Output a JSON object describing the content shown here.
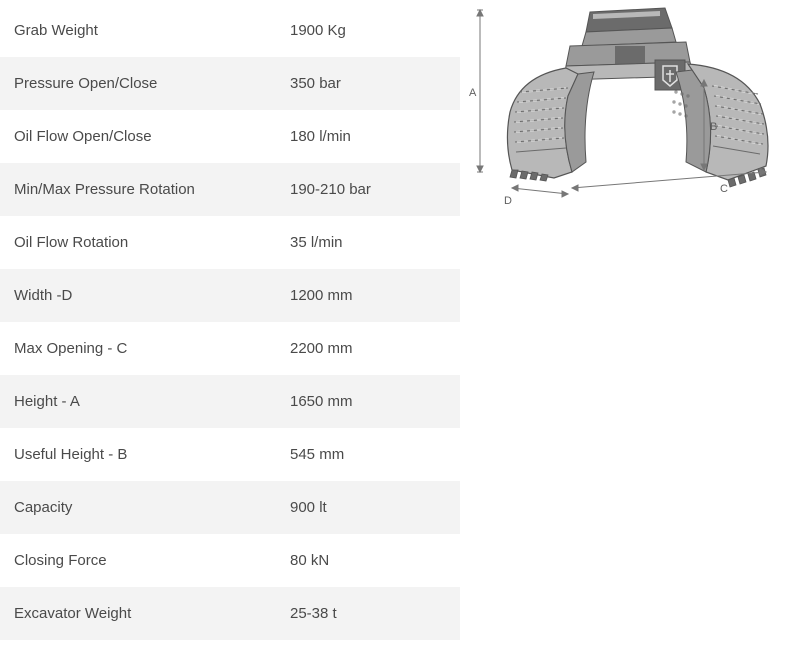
{
  "specs": {
    "rows": [
      {
        "label": "Grab Weight",
        "value": "1900 Kg"
      },
      {
        "label": "Pressure Open/Close",
        "value": "350 bar"
      },
      {
        "label": "Oil Flow Open/Close",
        "value": "180 l/min"
      },
      {
        "label": "Min/Max Pressure Rotation",
        "value": "190-210 bar"
      },
      {
        "label": "Oil Flow Rotation",
        "value": "35 l/min"
      },
      {
        "label": "Width -D",
        "value": "1200 mm"
      },
      {
        "label": "Max Opening - C",
        "value": "2200 mm"
      },
      {
        "label": "Height - A",
        "value": "1650 mm"
      },
      {
        "label": "Useful Height - B",
        "value": "545 mm"
      },
      {
        "label": "Capacity",
        "value": "900 lt"
      },
      {
        "label": "Closing Force",
        "value": "80 kN"
      },
      {
        "label": "Excavator Weight",
        "value": "25-38 t"
      }
    ],
    "row_bg_even": "#f3f3f3",
    "row_bg_odd": "#ffffff",
    "text_color": "#4a4a4a",
    "font_size": 15
  },
  "diagram": {
    "labels": {
      "A": "A",
      "B": "B",
      "C": "C",
      "D": "D"
    },
    "colors": {
      "body": "#9a9a9a",
      "body_light": "#b8b8b8",
      "body_dark": "#6b6b6b",
      "outline": "#555555",
      "dim_line": "#777777",
      "label": "#606060",
      "logo_bg": "#6b6b6b",
      "logo_fg": "#e0e0e0"
    }
  }
}
